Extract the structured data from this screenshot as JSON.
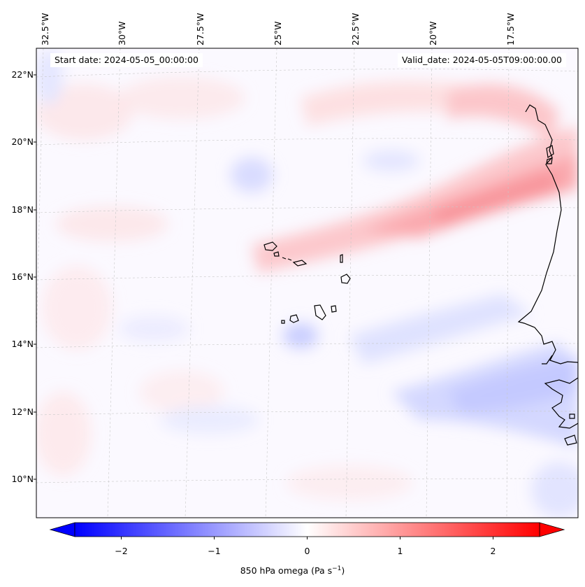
{
  "map": {
    "projection": "lambert-like conic",
    "region": "Cape Verde and West African coast",
    "variable": "850 hPa omega",
    "start_date_label": "Start date: 2024-05-05_00:00:00",
    "valid_date_label": "Valid_date: 2024-05-05T09:00:00.00",
    "lon_labels": [
      "32.5°W",
      "30°W",
      "27.5°W",
      "25°W",
      "22.5°W",
      "20°W",
      "17.5°W"
    ],
    "lat_labels": [
      "22°N",
      "20°N",
      "18°N",
      "16°N",
      "14°N",
      "12°N",
      "10°N"
    ],
    "coastline_color": "#000000",
    "gridline_color": "#c8c8c8"
  },
  "colorbar": {
    "min": -2.7,
    "max": 2.7,
    "ticks": [
      "−2",
      "−1",
      "0",
      "1",
      "2"
    ],
    "tick_values": [
      -2,
      -1,
      0,
      1,
      2
    ],
    "label_main": "850 hPa omega (Pa s",
    "label_sup": "−1",
    "label_end": ")",
    "colors": {
      "low": "#0000ff",
      "mid": "#ffffff",
      "high": "#ff0000"
    }
  }
}
